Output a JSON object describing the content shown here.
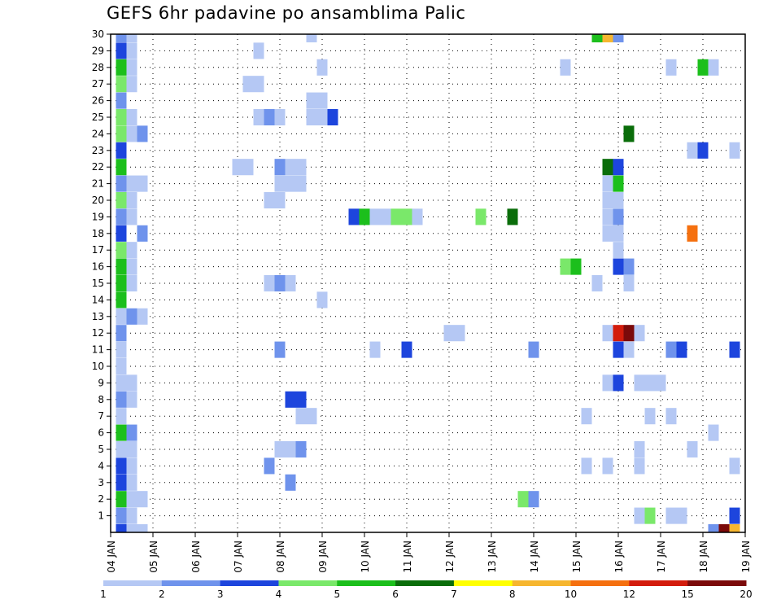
{
  "chart_data": {
    "type": "heatmap",
    "title": "GEFS 6hr padavine po ansamblima Palic",
    "x_tick_labels": [
      "04 JAN",
      "05 JAN",
      "06 JAN",
      "07 JAN",
      "08 JAN",
      "09 JAN",
      "10 JAN",
      "11 JAN",
      "12 JAN",
      "13 JAN",
      "14 JAN",
      "15 JAN",
      "16 JAN",
      "17 JAN",
      "18 JAN",
      "19 JAN"
    ],
    "y_tick_labels": [
      "1",
      "2",
      "3",
      "4",
      "5",
      "6",
      "7",
      "8",
      "9",
      "10",
      "11",
      "12",
      "13",
      "14",
      "15",
      "16",
      "17",
      "18",
      "19",
      "20",
      "21",
      "22",
      "23",
      "24",
      "25",
      "26",
      "27",
      "28",
      "29",
      "30"
    ],
    "xlim_days": [
      0,
      15
    ],
    "ylim_members": [
      0,
      30
    ],
    "grid": true,
    "colorbar": {
      "labels": [
        "1",
        "2",
        "3",
        "4",
        "5",
        "6",
        "7",
        "8",
        "10",
        "12",
        "15",
        "20"
      ],
      "colors": [
        "#b5c8f4",
        "#6f93ec",
        "#1d45dd",
        "#7ae86a",
        "#1cbf1c",
        "#0a6d0a",
        "#ffff00",
        "#f6b62f",
        "#f5700f",
        "#d31c0c",
        "#7b0a0a"
      ]
    },
    "cells": [
      {
        "day": 0.25,
        "member": 30,
        "level": 2
      },
      {
        "day": 0.5,
        "member": 30,
        "level": 1
      },
      {
        "day": 4.75,
        "member": 30,
        "level": 1
      },
      {
        "day": 11.5,
        "member": 30,
        "level": 5
      },
      {
        "day": 11.75,
        "member": 30,
        "level": 8
      },
      {
        "day": 12.0,
        "member": 30,
        "level": 2
      },
      {
        "day": 0.25,
        "member": 29,
        "level": 3
      },
      {
        "day": 0.5,
        "member": 29,
        "level": 1
      },
      {
        "day": 3.5,
        "member": 29,
        "level": 1
      },
      {
        "day": 0.25,
        "member": 28,
        "level": 5
      },
      {
        "day": 0.5,
        "member": 28,
        "level": 1
      },
      {
        "day": 5.0,
        "member": 28,
        "level": 1
      },
      {
        "day": 10.75,
        "member": 28,
        "level": 1
      },
      {
        "day": 13.25,
        "member": 28,
        "level": 1
      },
      {
        "day": 14.0,
        "member": 28,
        "level": 5
      },
      {
        "day": 14.25,
        "member": 28,
        "level": 1
      },
      {
        "day": 0.25,
        "member": 27,
        "level": 4
      },
      {
        "day": 0.5,
        "member": 27,
        "level": 1
      },
      {
        "day": 3.25,
        "member": 27,
        "level": 1
      },
      {
        "day": 3.5,
        "member": 27,
        "level": 1
      },
      {
        "day": 0.25,
        "member": 26,
        "level": 2
      },
      {
        "day": 4.75,
        "member": 26,
        "level": 1
      },
      {
        "day": 5.0,
        "member": 26,
        "level": 1
      },
      {
        "day": 0.25,
        "member": 25,
        "level": 4
      },
      {
        "day": 0.5,
        "member": 25,
        "level": 1
      },
      {
        "day": 3.5,
        "member": 25,
        "level": 1
      },
      {
        "day": 3.75,
        "member": 25,
        "level": 2
      },
      {
        "day": 4.0,
        "member": 25,
        "level": 1
      },
      {
        "day": 4.75,
        "member": 25,
        "level": 1
      },
      {
        "day": 5.0,
        "member": 25,
        "level": 1
      },
      {
        "day": 5.25,
        "member": 25,
        "level": 3
      },
      {
        "day": 0.25,
        "member": 24,
        "level": 4
      },
      {
        "day": 0.5,
        "member": 24,
        "level": 1
      },
      {
        "day": 0.75,
        "member": 24,
        "level": 2
      },
      {
        "day": 12.25,
        "member": 24,
        "level": 6
      },
      {
        "day": 0.25,
        "member": 23,
        "level": 3
      },
      {
        "day": 13.75,
        "member": 23,
        "level": 1
      },
      {
        "day": 14.0,
        "member": 23,
        "level": 3
      },
      {
        "day": 14.75,
        "member": 23,
        "level": 1
      },
      {
        "day": 0.25,
        "member": 22,
        "level": 5
      },
      {
        "day": 3.0,
        "member": 22,
        "level": 1
      },
      {
        "day": 3.25,
        "member": 22,
        "level": 1
      },
      {
        "day": 4.0,
        "member": 22,
        "level": 2
      },
      {
        "day": 4.25,
        "member": 22,
        "level": 1
      },
      {
        "day": 4.5,
        "member": 22,
        "level": 1
      },
      {
        "day": 11.75,
        "member": 22,
        "level": 6
      },
      {
        "day": 12.0,
        "member": 22,
        "level": 3
      },
      {
        "day": 0.25,
        "member": 21,
        "level": 2
      },
      {
        "day": 0.5,
        "member": 21,
        "level": 1
      },
      {
        "day": 0.75,
        "member": 21,
        "level": 1
      },
      {
        "day": 4.0,
        "member": 21,
        "level": 1
      },
      {
        "day": 4.25,
        "member": 21,
        "level": 1
      },
      {
        "day": 4.5,
        "member": 21,
        "level": 1
      },
      {
        "day": 11.75,
        "member": 21,
        "level": 1
      },
      {
        "day": 12.0,
        "member": 21,
        "level": 5
      },
      {
        "day": 0.25,
        "member": 20,
        "level": 4
      },
      {
        "day": 0.5,
        "member": 20,
        "level": 1
      },
      {
        "day": 3.75,
        "member": 20,
        "level": 1
      },
      {
        "day": 4.0,
        "member": 20,
        "level": 1
      },
      {
        "day": 11.75,
        "member": 20,
        "level": 1
      },
      {
        "day": 12.0,
        "member": 20,
        "level": 1
      },
      {
        "day": 0.25,
        "member": 19,
        "level": 2
      },
      {
        "day": 0.5,
        "member": 19,
        "level": 1
      },
      {
        "day": 5.75,
        "member": 19,
        "level": 3
      },
      {
        "day": 6.0,
        "member": 19,
        "level": 5
      },
      {
        "day": 6.25,
        "member": 19,
        "level": 1
      },
      {
        "day": 6.5,
        "member": 19,
        "level": 1
      },
      {
        "day": 6.75,
        "member": 19,
        "level": 4
      },
      {
        "day": 7.0,
        "member": 19,
        "level": 4
      },
      {
        "day": 7.25,
        "member": 19,
        "level": 1
      },
      {
        "day": 8.75,
        "member": 19,
        "level": 4
      },
      {
        "day": 9.5,
        "member": 19,
        "level": 6
      },
      {
        "day": 11.75,
        "member": 19,
        "level": 1
      },
      {
        "day": 12.0,
        "member": 19,
        "level": 2
      },
      {
        "day": 0.25,
        "member": 18,
        "level": 3
      },
      {
        "day": 0.75,
        "member": 18,
        "level": 2
      },
      {
        "day": 11.75,
        "member": 18,
        "level": 1
      },
      {
        "day": 12.0,
        "member": 18,
        "level": 1
      },
      {
        "day": 13.75,
        "member": 18,
        "level": 9
      },
      {
        "day": 0.25,
        "member": 17,
        "level": 4
      },
      {
        "day": 0.5,
        "member": 17,
        "level": 1
      },
      {
        "day": 12.0,
        "member": 17,
        "level": 1
      },
      {
        "day": 0.25,
        "member": 16,
        "level": 5
      },
      {
        "day": 0.5,
        "member": 16,
        "level": 1
      },
      {
        "day": 10.75,
        "member": 16,
        "level": 4
      },
      {
        "day": 11.0,
        "member": 16,
        "level": 5
      },
      {
        "day": 12.0,
        "member": 16,
        "level": 3
      },
      {
        "day": 12.25,
        "member": 16,
        "level": 2
      },
      {
        "day": 0.25,
        "member": 15,
        "level": 5
      },
      {
        "day": 0.5,
        "member": 15,
        "level": 1
      },
      {
        "day": 3.75,
        "member": 15,
        "level": 1
      },
      {
        "day": 4.0,
        "member": 15,
        "level": 2
      },
      {
        "day": 4.25,
        "member": 15,
        "level": 1
      },
      {
        "day": 11.5,
        "member": 15,
        "level": 1
      },
      {
        "day": 12.25,
        "member": 15,
        "level": 1
      },
      {
        "day": 0.25,
        "member": 14,
        "level": 5
      },
      {
        "day": 5.0,
        "member": 14,
        "level": 1
      },
      {
        "day": 0.25,
        "member": 13,
        "level": 1
      },
      {
        "day": 0.5,
        "member": 13,
        "level": 2
      },
      {
        "day": 0.75,
        "member": 13,
        "level": 1
      },
      {
        "day": 0.25,
        "member": 12,
        "level": 2
      },
      {
        "day": 8.0,
        "member": 12,
        "level": 1
      },
      {
        "day": 8.25,
        "member": 12,
        "level": 1
      },
      {
        "day": 11.75,
        "member": 12,
        "level": 1
      },
      {
        "day": 12.0,
        "member": 12,
        "level": 10
      },
      {
        "day": 12.25,
        "member": 12,
        "level": 12
      },
      {
        "day": 12.5,
        "member": 12,
        "level": 1
      },
      {
        "day": 0.25,
        "member": 11,
        "level": 1
      },
      {
        "day": 4.0,
        "member": 11,
        "level": 2
      },
      {
        "day": 6.25,
        "member": 11,
        "level": 1
      },
      {
        "day": 7.0,
        "member": 11,
        "level": 3
      },
      {
        "day": 10.0,
        "member": 11,
        "level": 2
      },
      {
        "day": 12.0,
        "member": 11,
        "level": 3
      },
      {
        "day": 12.25,
        "member": 11,
        "level": 1
      },
      {
        "day": 13.25,
        "member": 11,
        "level": 2
      },
      {
        "day": 13.5,
        "member": 11,
        "level": 3
      },
      {
        "day": 14.75,
        "member": 11,
        "level": 3
      },
      {
        "day": 0.25,
        "member": 10,
        "level": 1
      },
      {
        "day": 0.25,
        "member": 9,
        "level": 1
      },
      {
        "day": 0.5,
        "member": 9,
        "level": 1
      },
      {
        "day": 11.75,
        "member": 9,
        "level": 1
      },
      {
        "day": 12.0,
        "member": 9,
        "level": 3
      },
      {
        "day": 12.5,
        "member": 9,
        "level": 1
      },
      {
        "day": 12.75,
        "member": 9,
        "level": 1
      },
      {
        "day": 13.0,
        "member": 9,
        "level": 1
      },
      {
        "day": 0.25,
        "member": 8,
        "level": 2
      },
      {
        "day": 0.5,
        "member": 8,
        "level": 1
      },
      {
        "day": 4.25,
        "member": 8,
        "level": 3
      },
      {
        "day": 4.5,
        "member": 8,
        "level": 3
      },
      {
        "day": 0.25,
        "member": 7,
        "level": 1
      },
      {
        "day": 4.5,
        "member": 7,
        "level": 1
      },
      {
        "day": 4.75,
        "member": 7,
        "level": 1
      },
      {
        "day": 11.25,
        "member": 7,
        "level": 1
      },
      {
        "day": 12.75,
        "member": 7,
        "level": 1
      },
      {
        "day": 13.25,
        "member": 7,
        "level": 1
      },
      {
        "day": 0.25,
        "member": 6,
        "level": 5
      },
      {
        "day": 0.5,
        "member": 6,
        "level": 2
      },
      {
        "day": 14.25,
        "member": 6,
        "level": 1
      },
      {
        "day": 0.25,
        "member": 5,
        "level": 1
      },
      {
        "day": 0.5,
        "member": 5,
        "level": 1
      },
      {
        "day": 4.0,
        "member": 5,
        "level": 1
      },
      {
        "day": 4.25,
        "member": 5,
        "level": 1
      },
      {
        "day": 4.5,
        "member": 5,
        "level": 2
      },
      {
        "day": 12.5,
        "member": 5,
        "level": 1
      },
      {
        "day": 13.75,
        "member": 5,
        "level": 1
      },
      {
        "day": 0.25,
        "member": 4,
        "level": 3
      },
      {
        "day": 0.5,
        "member": 4,
        "level": 1
      },
      {
        "day": 3.75,
        "member": 4,
        "level": 2
      },
      {
        "day": 11.25,
        "member": 4,
        "level": 1
      },
      {
        "day": 11.75,
        "member": 4,
        "level": 1
      },
      {
        "day": 12.5,
        "member": 4,
        "level": 1
      },
      {
        "day": 14.75,
        "member": 4,
        "level": 1
      },
      {
        "day": 0.25,
        "member": 3,
        "level": 3
      },
      {
        "day": 0.5,
        "member": 3,
        "level": 1
      },
      {
        "day": 4.25,
        "member": 3,
        "level": 2
      },
      {
        "day": 0.25,
        "member": 2,
        "level": 5
      },
      {
        "day": 0.5,
        "member": 2,
        "level": 1
      },
      {
        "day": 0.75,
        "member": 2,
        "level": 1
      },
      {
        "day": 9.75,
        "member": 2,
        "level": 4
      },
      {
        "day": 10.0,
        "member": 2,
        "level": 2
      },
      {
        "day": 0.25,
        "member": 1,
        "level": 2
      },
      {
        "day": 0.5,
        "member": 1,
        "level": 1
      },
      {
        "day": 12.5,
        "member": 1,
        "level": 1
      },
      {
        "day": 12.75,
        "member": 1,
        "level": 4
      },
      {
        "day": 13.25,
        "member": 1,
        "level": 1
      },
      {
        "day": 13.5,
        "member": 1,
        "level": 1
      },
      {
        "day": 14.75,
        "member": 1,
        "level": 3
      },
      {
        "day": 0.25,
        "member": 0,
        "level": 3
      },
      {
        "day": 0.5,
        "member": 0,
        "level": 1
      },
      {
        "day": 0.75,
        "member": 0,
        "level": 1
      },
      {
        "day": 14.25,
        "member": 0,
        "level": 2
      },
      {
        "day": 14.5,
        "member": 0,
        "level": 11
      },
      {
        "day": 14.75,
        "member": 0,
        "level": 8
      }
    ]
  }
}
